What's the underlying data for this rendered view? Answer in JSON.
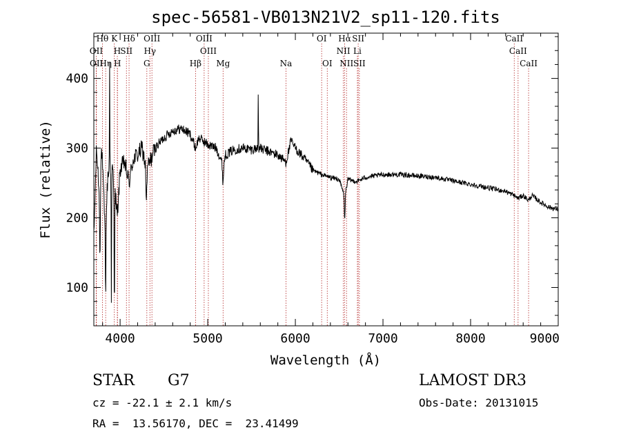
{
  "chart_data": {
    "type": "line",
    "title": "spec-56581-VB013N21V2_sp11-120.fits",
    "xlabel": "Wavelength (Å)",
    "ylabel": "Flux (relative)",
    "xlim": [
      3700,
      9000
    ],
    "ylim": [
      45,
      465
    ],
    "x_ticks": [
      4000,
      5000,
      6000,
      7000,
      8000,
      9000
    ],
    "y_ticks": [
      100,
      200,
      300,
      400
    ],
    "series": [
      {
        "name": "spectrum",
        "anchors": [
          [
            3700,
            170
          ],
          [
            3730,
            300
          ],
          [
            3760,
            240
          ],
          [
            3790,
            300
          ],
          [
            3830,
            180
          ],
          [
            3860,
            260
          ],
          [
            3900,
            280
          ],
          [
            3935,
            250
          ],
          [
            3968,
            200
          ],
          [
            4000,
            270
          ],
          [
            4050,
            280
          ],
          [
            4102,
            250
          ],
          [
            4150,
            285
          ],
          [
            4200,
            290
          ],
          [
            4250,
            300
          ],
          [
            4300,
            270
          ],
          [
            4340,
            280
          ],
          [
            4400,
            300
          ],
          [
            4500,
            315
          ],
          [
            4600,
            325
          ],
          [
            4700,
            328
          ],
          [
            4800,
            320
          ],
          [
            4861,
            300
          ],
          [
            4900,
            315
          ],
          [
            5000,
            305
          ],
          [
            5100,
            300
          ],
          [
            5175,
            275
          ],
          [
            5200,
            290
          ],
          [
            5300,
            298
          ],
          [
            5400,
            300
          ],
          [
            5500,
            298
          ],
          [
            5580,
            300
          ],
          [
            5700,
            295
          ],
          [
            5800,
            290
          ],
          [
            5893,
            280
          ],
          [
            5950,
            310
          ],
          [
            6000,
            300
          ],
          [
            6100,
            285
          ],
          [
            6200,
            268
          ],
          [
            6300,
            262
          ],
          [
            6400,
            258
          ],
          [
            6500,
            255
          ],
          [
            6563,
            230
          ],
          [
            6600,
            255
          ],
          [
            6700,
            252
          ],
          [
            6800,
            258
          ],
          [
            6900,
            260
          ],
          [
            7000,
            262
          ],
          [
            7200,
            262
          ],
          [
            7400,
            260
          ],
          [
            7600,
            258
          ],
          [
            7800,
            253
          ],
          [
            8000,
            248
          ],
          [
            8200,
            243
          ],
          [
            8400,
            238
          ],
          [
            8498,
            232
          ],
          [
            8542,
            228
          ],
          [
            8600,
            232
          ],
          [
            8662,
            225
          ],
          [
            8700,
            232
          ],
          [
            8800,
            222
          ],
          [
            8900,
            215
          ],
          [
            9000,
            212
          ]
        ],
        "features": [
          {
            "center": 3770,
            "depth": -110,
            "width": 6
          },
          {
            "center": 3835,
            "depth": -95,
            "width": 5
          },
          {
            "center": 3880,
            "depth": 150,
            "width": 3
          },
          {
            "center": 3900,
            "depth": -200,
            "width": 4
          },
          {
            "center": 3934,
            "depth": -170,
            "width": 5
          },
          {
            "center": 4300,
            "depth": -45,
            "width": 8
          },
          {
            "center": 5577,
            "depth": 85,
            "width": 3
          },
          {
            "center": 5175,
            "depth": -25,
            "width": 8
          },
          {
            "center": 6563,
            "depth": -35,
            "width": 6
          }
        ],
        "noise": 12,
        "step": 4
      }
    ],
    "spectral_lines": [
      {
        "label": "Hθ",
        "wavelength": 3798,
        "row": 0
      },
      {
        "label": "K",
        "wavelength": 3934,
        "row": 0
      },
      {
        "label": "Hδ",
        "wavelength": 4102,
        "row": 0
      },
      {
        "label": "OIII",
        "wavelength": 4363,
        "row": 0
      },
      {
        "label": "OIII",
        "wavelength": 4959,
        "row": 0
      },
      {
        "label": "OI",
        "wavelength": 6300,
        "row": 0
      },
      {
        "label": "Hα",
        "wavelength": 6563,
        "row": 0
      },
      {
        "label": "SII",
        "wavelength": 6717,
        "row": 0
      },
      {
        "label": "CaII",
        "wavelength": 8498,
        "row": 0
      },
      {
        "label": "OII",
        "wavelength": 3727,
        "row": 1
      },
      {
        "label": "H",
        "wavelength": 3968,
        "row": 1
      },
      {
        "label": "SII",
        "wavelength": 4072,
        "row": 1
      },
      {
        "label": "Hγ",
        "wavelength": 4340,
        "row": 1
      },
      {
        "label": "OIII",
        "wavelength": 5007,
        "row": 1
      },
      {
        "label": "NII",
        "wavelength": 6548,
        "row": 1
      },
      {
        "label": "Li",
        "wavelength": 6708,
        "row": 1
      },
      {
        "label": "CaII",
        "wavelength": 8542,
        "row": 1
      },
      {
        "label": "OII",
        "wavelength": 3729,
        "row": 2
      },
      {
        "label": "Hη",
        "wavelength": 3835,
        "row": 2
      },
      {
        "label": "H",
        "wavelength": 3970,
        "row": 2
      },
      {
        "label": "G",
        "wavelength": 4305,
        "row": 2
      },
      {
        "label": "Hβ",
        "wavelength": 4861,
        "row": 2
      },
      {
        "label": "Mg",
        "wavelength": 5175,
        "row": 2
      },
      {
        "label": "Na",
        "wavelength": 5893,
        "row": 2
      },
      {
        "label": "OI",
        "wavelength": 6364,
        "row": 2
      },
      {
        "label": "NII",
        "wavelength": 6584,
        "row": 2
      },
      {
        "label": "SII",
        "wavelength": 6731,
        "row": 2
      },
      {
        "label": "CaII",
        "wavelength": 8662,
        "row": 2
      }
    ],
    "colors": {
      "spectrum": "#000000",
      "marker": "#b22222",
      "axes": "#000000"
    }
  },
  "info": {
    "object_class": "STAR",
    "subclass": "G7",
    "survey": "LAMOST DR3",
    "redshift": "cz = -22.1 ± 2.1 km/s",
    "obs_date": "Obs-Date: 20131015",
    "coords": "RA =  13.56170, DEC =  23.41499"
  }
}
